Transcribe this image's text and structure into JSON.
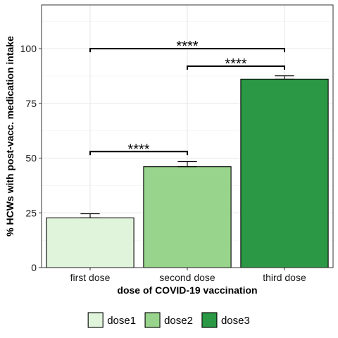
{
  "chart_data": {
    "type": "bar",
    "categories": [
      "first dose",
      "second dose",
      "third dose"
    ],
    "values": [
      22.7,
      46.1,
      86.1
    ],
    "errors": [
      1.9,
      2.3,
      1.5
    ],
    "fills": [
      "#e0f3db",
      "#98d48b",
      "#2b9845"
    ],
    "xlabel": "dose of COVID-19 vaccination",
    "ylabel": "% HCWs with post-vacc. medication intake",
    "ylim": [
      0,
      120
    ],
    "yticks": [
      0,
      25,
      50,
      75,
      100
    ],
    "grid": true,
    "legend": {
      "position": "bottom",
      "entries": [
        {
          "label": "dose1",
          "color": "#e0f3db"
        },
        {
          "label": "dose2",
          "color": "#98d48b"
        },
        {
          "label": "dose3",
          "color": "#2b9845"
        }
      ]
    },
    "significance": [
      {
        "from": 0,
        "to": 1,
        "y": 53,
        "label": "****"
      },
      {
        "from": 1,
        "to": 2,
        "y": 92,
        "label": "****"
      },
      {
        "from": 0,
        "to": 2,
        "y": 100,
        "label": "****"
      }
    ]
  }
}
